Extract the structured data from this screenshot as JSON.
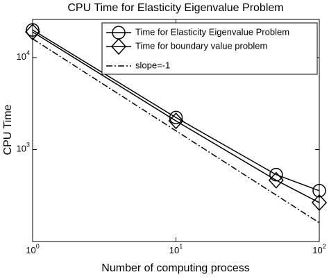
{
  "chart_data": {
    "type": "line",
    "title": "CPU Time for Elasticity Eigenvalue Problem",
    "x_label": "Number of computing process",
    "y_label": "CPU Time",
    "log_x": true,
    "log_y": true,
    "xlim": [
      1,
      100
    ],
    "ylim": [
      100,
      26000
    ],
    "xticks": [
      {
        "value": 1,
        "label": "10^0"
      },
      {
        "value": 10,
        "label": "10^1"
      },
      {
        "value": 100,
        "label": "10^2"
      }
    ],
    "yticks": [
      {
        "value": 1000,
        "label": "10^3"
      },
      {
        "value": 10000,
        "label": "10^4"
      }
    ],
    "legend": "top-right",
    "series": [
      {
        "name": "Time for Elasticity Eigenvalue Problem",
        "color": "#000000",
        "marker": "circle",
        "x": [
          1,
          10,
          50,
          100
        ],
        "values": [
          20000,
          2230,
          534,
          357
        ]
      },
      {
        "name": "Time for boundary value problem",
        "color": "#000000",
        "marker": "diamond",
        "x": [
          1,
          10,
          50,
          100
        ],
        "values": [
          19000,
          2050,
          464,
          265
        ]
      },
      {
        "name": "slope=-1",
        "color": "#000000",
        "marker": "none",
        "dash": "dashdot",
        "x": [
          1,
          100
        ],
        "values": [
          16000,
          160
        ]
      }
    ]
  }
}
